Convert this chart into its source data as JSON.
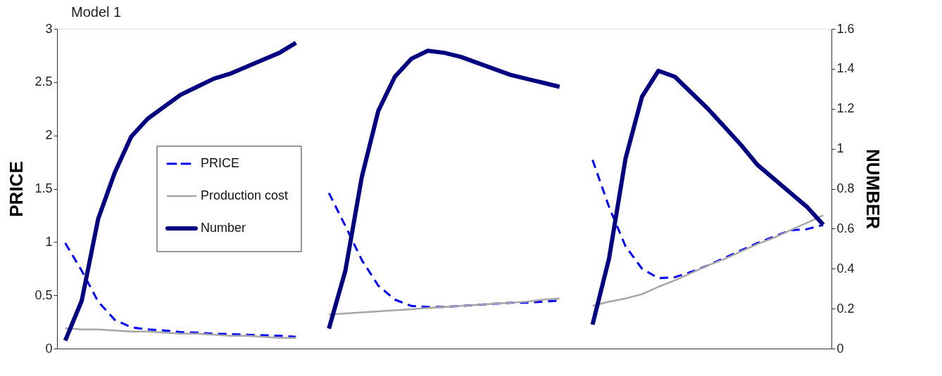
{
  "chart_data": {
    "type": "line",
    "title": "Model 1",
    "ylabel": "PRICE",
    "y2label": "NUMBER",
    "categories": [
      null,
      null,
      null,
      null,
      null,
      null,
      null,
      null,
      null,
      null,
      null,
      null,
      null,
      null,
      null,
      null,
      null,
      null,
      null,
      null,
      null,
      null,
      null,
      null,
      null,
      null,
      null,
      null,
      null,
      null,
      null,
      null,
      null,
      null,
      null,
      null,
      null,
      null,
      null,
      null,
      null,
      null,
      null,
      null,
      null,
      null,
      null
    ],
    "ylim": [
      0,
      3
    ],
    "yticks": [
      0,
      0.5,
      1,
      1.5,
      2,
      2.5,
      3
    ],
    "y2lim": [
      0,
      1.6
    ],
    "y2ticks": [
      0,
      0.2,
      0.4,
      0.6,
      0.8,
      1,
      1.2,
      1.4,
      1.6
    ],
    "legend": "left",
    "grid": false,
    "series": [
      {
        "name": "PRICE",
        "color": "#0000ff",
        "line_style": "dashed",
        "values": [
          0.99,
          0.73,
          0.44,
          0.27,
          0.2,
          0.18,
          0.17,
          0.155,
          0.15,
          0.14,
          0.135,
          0.13,
          0.125,
          0.12,
          0.11,
          null,
          1.46,
          1.15,
          0.83,
          0.59,
          0.46,
          0.4,
          0.39,
          0.39,
          0.4,
          0.41,
          0.42,
          0.43,
          0.43,
          0.44,
          0.45,
          null,
          1.77,
          1.33,
          0.96,
          0.75,
          0.66,
          0.67,
          0.72,
          0.78,
          0.85,
          0.92,
          0.99,
          1.05,
          1.11,
          1.12,
          1.16
        ]
      },
      {
        "name": "Production cost",
        "color": "#a6a6a6",
        "line_style": "solid",
        "values": [
          0.19,
          0.18,
          0.18,
          0.17,
          0.16,
          0.16,
          0.15,
          0.14,
          0.14,
          0.13,
          0.12,
          0.12,
          0.11,
          0.1,
          0.1,
          null,
          0.32,
          0.33,
          0.34,
          0.35,
          0.36,
          0.37,
          0.38,
          0.39,
          0.4,
          0.41,
          0.42,
          0.43,
          0.44,
          0.46,
          0.47,
          null,
          0.4,
          0.44,
          0.47,
          0.51,
          0.58,
          0.64,
          0.71,
          0.78,
          0.84,
          0.91,
          0.98,
          1.04,
          1.11,
          1.18,
          1.25
        ]
      },
      {
        "name": "Number",
        "color": "#000080",
        "line_style": "solid",
        "axis": "y2",
        "values": [
          0.04,
          0.24,
          0.65,
          0.88,
          1.06,
          1.15,
          1.21,
          1.27,
          1.31,
          1.35,
          1.375,
          1.41,
          1.445,
          1.48,
          1.53,
          null,
          0.1,
          0.39,
          0.86,
          1.19,
          1.36,
          1.45,
          1.49,
          1.48,
          1.46,
          1.43,
          1.4,
          1.37,
          1.35,
          1.33,
          1.31,
          null,
          0.12,
          0.45,
          0.95,
          1.26,
          1.39,
          1.36,
          1.28,
          1.2,
          1.11,
          1.02,
          0.92,
          0.85,
          0.78,
          0.71,
          0.62
        ]
      }
    ]
  }
}
